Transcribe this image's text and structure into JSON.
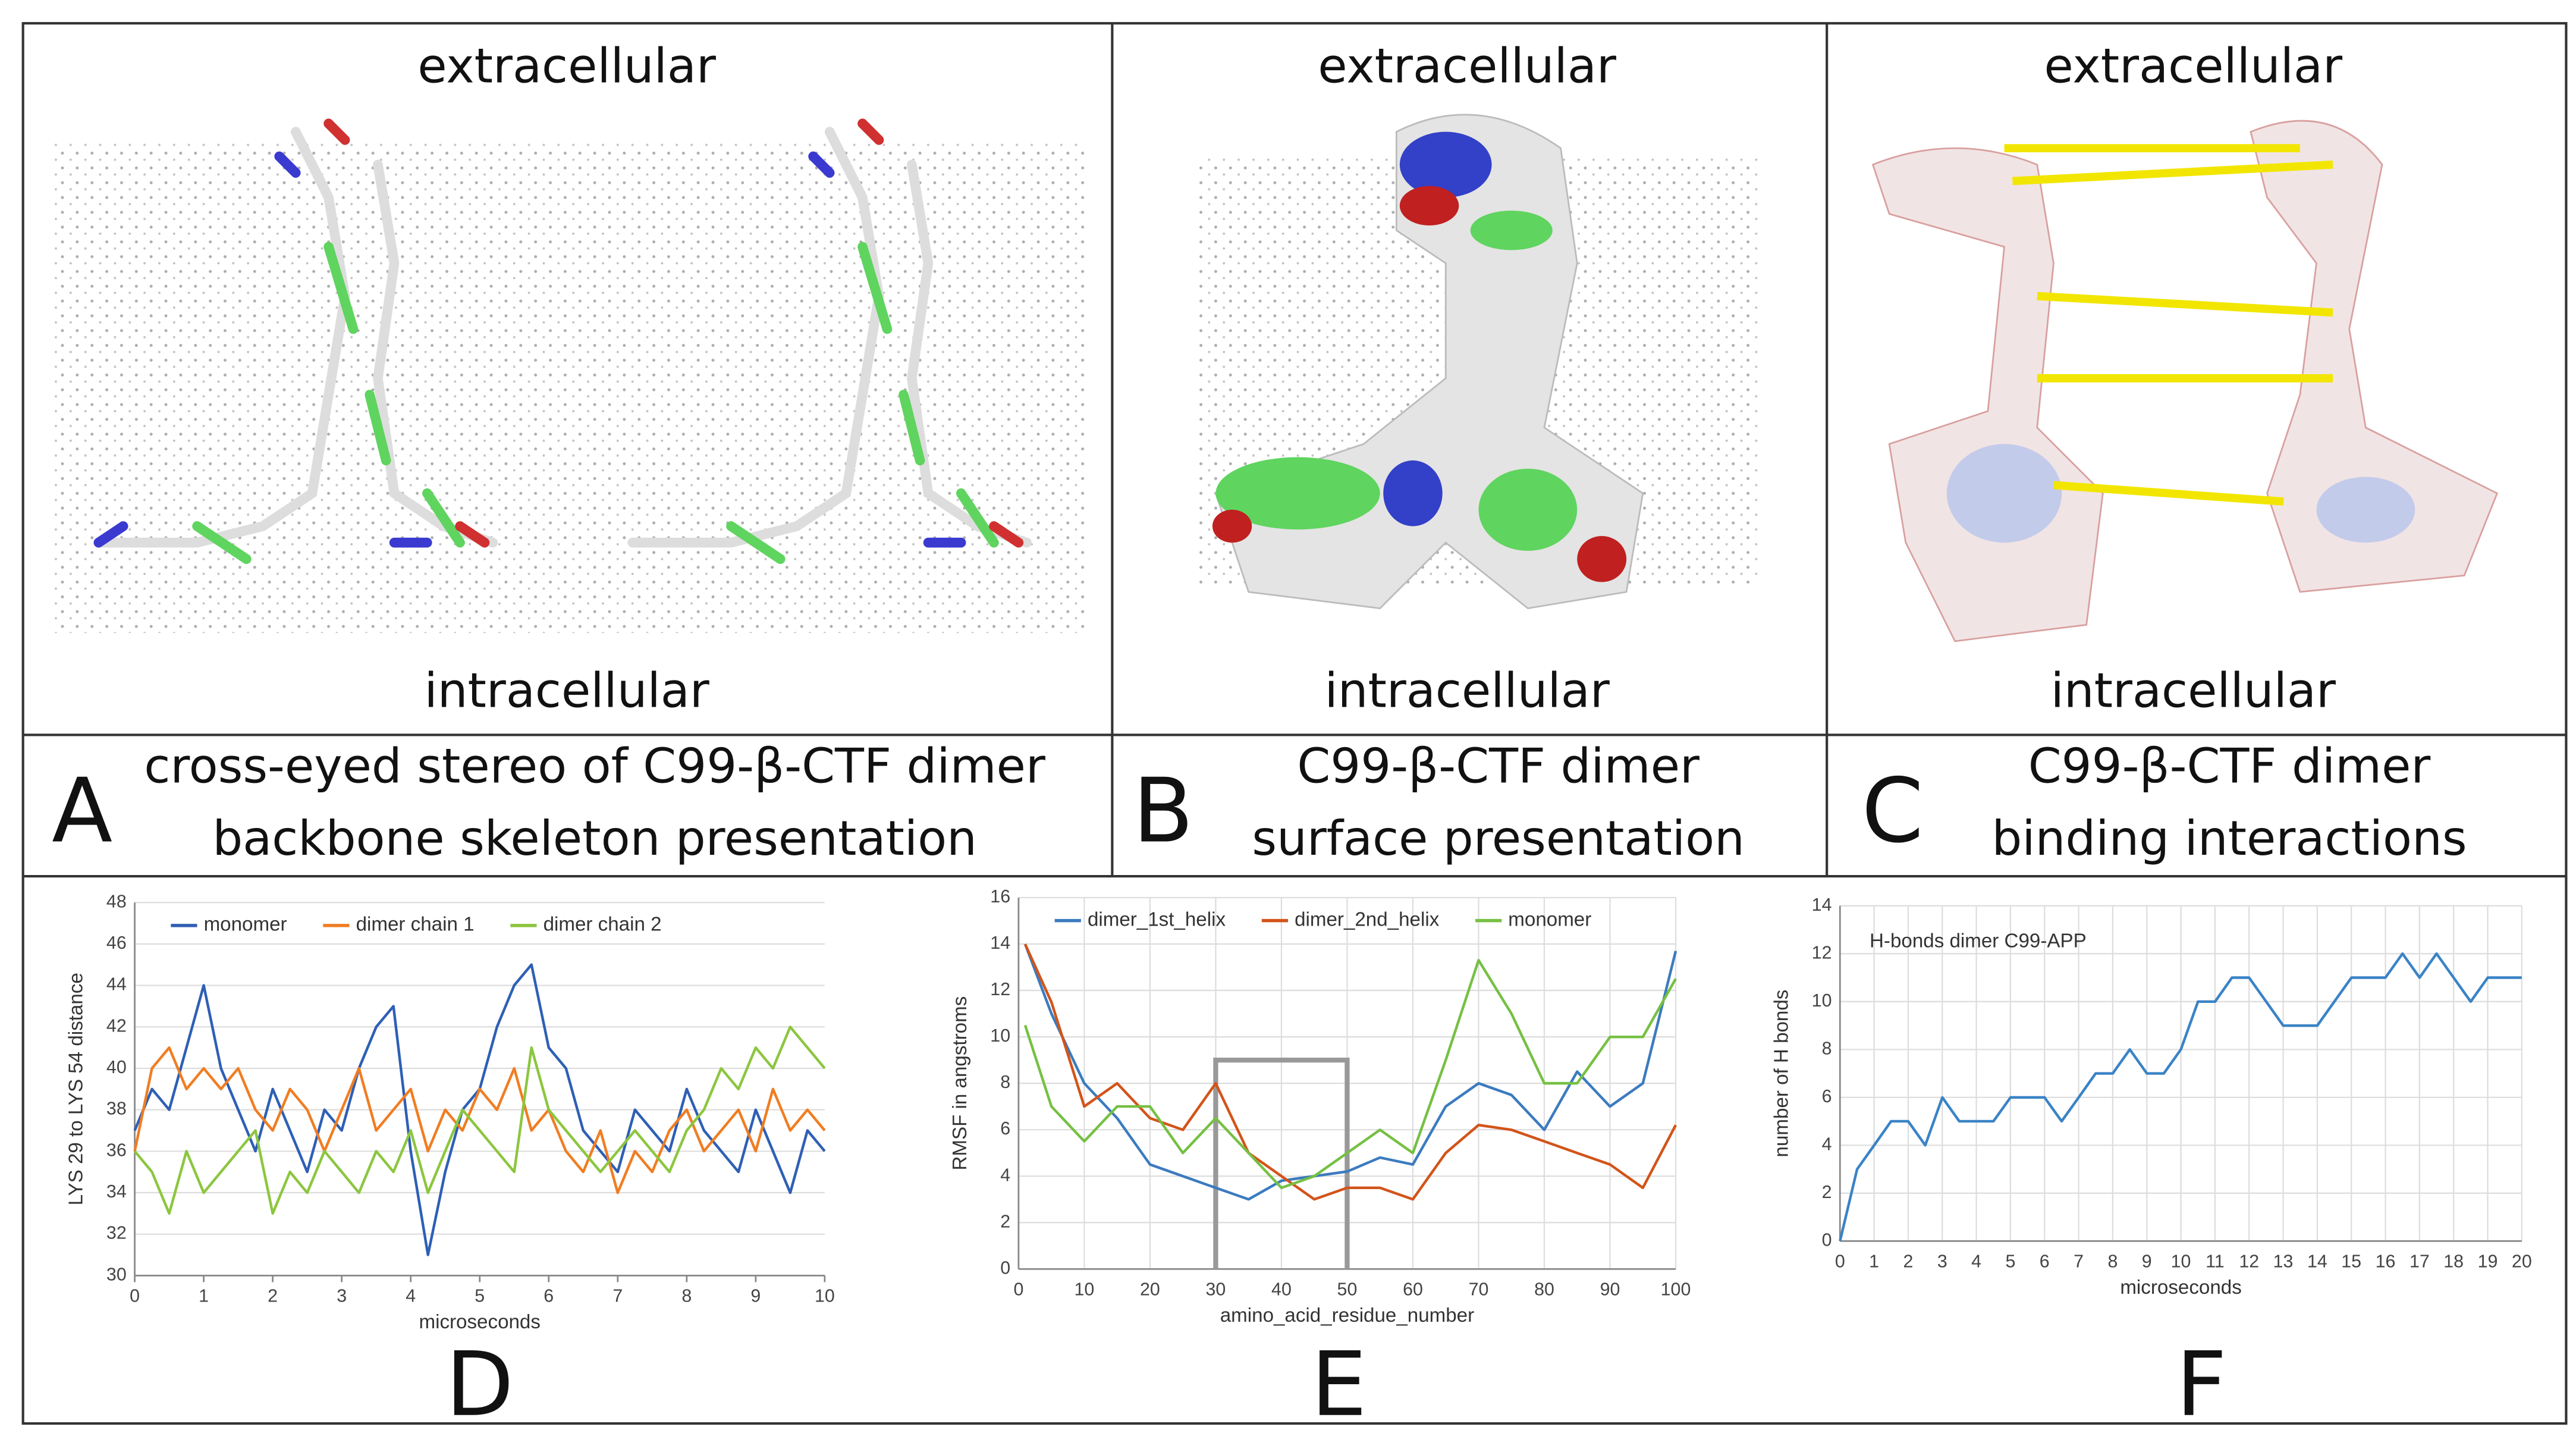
{
  "panels": [
    {
      "top": "extracellular",
      "bottom": "intracellular",
      "letter": "A",
      "line1": "cross-eyed stereo of C99-β-CTF dimer",
      "line2": "backbone skeleton presentation"
    },
    {
      "top": "extracellular",
      "bottom": "intracellular",
      "letter": "B",
      "line1": "C99-β-CTF dimer",
      "line2": "surface presentation"
    },
    {
      "top": "extracellular",
      "bottom": "intracellular",
      "letter": "C",
      "line1": "C99-β-CTF dimer",
      "line2": "binding interactions"
    }
  ],
  "chart_letters": [
    "D",
    "E",
    "F"
  ],
  "chart_data": [
    {
      "type": "line",
      "xlabel": "microseconds",
      "ylabel": "LYS 29 to LYS 54 distance",
      "grid": true,
      "legend": "top",
      "xlim": [
        0,
        10
      ],
      "xticks": [
        0,
        1,
        2,
        3,
        4,
        5,
        6,
        7,
        8,
        9,
        10
      ],
      "ylim": [
        30,
        48
      ],
      "yticks": [
        30,
        32,
        34,
        36,
        38,
        40,
        42,
        44,
        46,
        48
      ],
      "x": [
        0,
        0.25,
        0.5,
        0.75,
        1,
        1.25,
        1.5,
        1.75,
        2,
        2.25,
        2.5,
        2.75,
        3,
        3.25,
        3.5,
        3.75,
        4,
        4.25,
        4.5,
        4.75,
        5,
        5.25,
        5.5,
        5.75,
        6,
        6.25,
        6.5,
        6.75,
        7,
        7.25,
        7.5,
        7.75,
        8,
        8.25,
        8.5,
        8.75,
        9,
        9.25,
        9.5,
        9.75,
        10
      ],
      "series": [
        {
          "name": "monomer",
          "color": "#2e5fb5",
          "values": [
            37,
            39,
            38,
            41,
            44,
            40,
            38,
            36,
            39,
            37,
            35,
            38,
            37,
            40,
            42,
            43,
            36,
            31,
            35,
            38,
            39,
            42,
            44,
            45,
            41,
            40,
            37,
            36,
            35,
            38,
            37,
            36,
            39,
            37,
            36,
            35,
            38,
            36,
            34,
            37,
            36
          ]
        },
        {
          "name": "dimer chain 1",
          "color": "#f07d22",
          "values": [
            36,
            40,
            41,
            39,
            40,
            39,
            40,
            38,
            37,
            39,
            38,
            36,
            38,
            40,
            37,
            38,
            39,
            36,
            38,
            37,
            39,
            38,
            40,
            37,
            38,
            36,
            35,
            37,
            34,
            36,
            35,
            37,
            38,
            36,
            37,
            38,
            36,
            39,
            37,
            38,
            37
          ]
        },
        {
          "name": "dimer chain 2",
          "color": "#8cc63f",
          "values": [
            36,
            35,
            33,
            36,
            34,
            35,
            36,
            37,
            33,
            35,
            34,
            36,
            35,
            34,
            36,
            35,
            37,
            34,
            36,
            38,
            37,
            36,
            35,
            41,
            38,
            37,
            36,
            35,
            36,
            37,
            36,
            35,
            37,
            38,
            40,
            39,
            41,
            40,
            42,
            41,
            40
          ]
        }
      ]
    },
    {
      "type": "line",
      "xlabel": "amino_acid_residue_number",
      "ylabel": "RMSF in angstroms",
      "grid": true,
      "legend": "top",
      "xlim": [
        0,
        100
      ],
      "xticks": [
        0,
        10,
        20,
        30,
        40,
        50,
        60,
        70,
        80,
        90,
        100
      ],
      "ylim": [
        0,
        16
      ],
      "yticks": [
        0,
        2,
        4,
        6,
        8,
        10,
        12,
        14,
        16
      ],
      "x": [
        1,
        5,
        10,
        15,
        20,
        25,
        30,
        35,
        40,
        45,
        50,
        55,
        60,
        65,
        70,
        75,
        80,
        85,
        90,
        95,
        100
      ],
      "bracket": {
        "x": [
          30,
          50
        ],
        "y": 9
      },
      "series": [
        {
          "name": "dimer_1st_helix",
          "color": "#3b7bbf",
          "values": [
            14,
            11,
            8,
            6.5,
            4.5,
            4,
            3.5,
            3,
            3.8,
            4,
            4.2,
            4.8,
            4.5,
            7,
            8,
            7.5,
            6,
            8.5,
            7,
            8,
            13.7
          ]
        },
        {
          "name": "dimer_2nd_helix",
          "color": "#d2541a",
          "values": [
            14,
            11.5,
            7,
            8,
            6.5,
            6,
            8,
            5,
            4,
            3,
            3.5,
            3.5,
            3,
            5,
            6.2,
            6,
            5.5,
            5,
            4.5,
            3.5,
            6.2
          ]
        },
        {
          "name": "monomer",
          "color": "#76c043",
          "values": [
            10.5,
            7,
            5.5,
            7,
            7,
            5,
            6.5,
            5,
            3.5,
            4,
            5,
            6,
            5,
            9,
            13.3,
            11,
            8,
            8,
            10,
            10,
            12.5
          ]
        }
      ]
    },
    {
      "type": "line",
      "xlabel": "microseconds",
      "ylabel": "number of H bonds",
      "annotation": "H-bonds dimer C99-APP",
      "grid": true,
      "xlim": [
        0,
        20
      ],
      "xticks": [
        0,
        1,
        2,
        3,
        4,
        5,
        6,
        7,
        8,
        9,
        10,
        11,
        12,
        13,
        14,
        15,
        16,
        17,
        18,
        19,
        20
      ],
      "ylim": [
        0,
        14
      ],
      "yticks": [
        0,
        2,
        4,
        6,
        8,
        10,
        12,
        14
      ],
      "x": [
        0,
        0.5,
        1,
        1.5,
        2,
        2.5,
        3,
        3.5,
        4,
        4.5,
        5,
        5.5,
        6,
        6.5,
        7,
        7.5,
        8,
        8.5,
        9,
        9.5,
        10,
        10.5,
        11,
        11.5,
        12,
        12.5,
        13,
        13.5,
        14,
        14.5,
        15,
        15.5,
        16,
        16.5,
        17,
        17.5,
        18,
        18.5,
        19,
        19.5,
        20
      ],
      "series": [
        {
          "color": "#3a83c6",
          "values": [
            0,
            3,
            4,
            5,
            5,
            4,
            6,
            5,
            5,
            5,
            6,
            6,
            6,
            5,
            6,
            7,
            7,
            8,
            7,
            7,
            8,
            10,
            10,
            11,
            11,
            10,
            9,
            9,
            9,
            10,
            11,
            11,
            11,
            12,
            11,
            12,
            11,
            10,
            11,
            11,
            11
          ]
        }
      ]
    }
  ]
}
